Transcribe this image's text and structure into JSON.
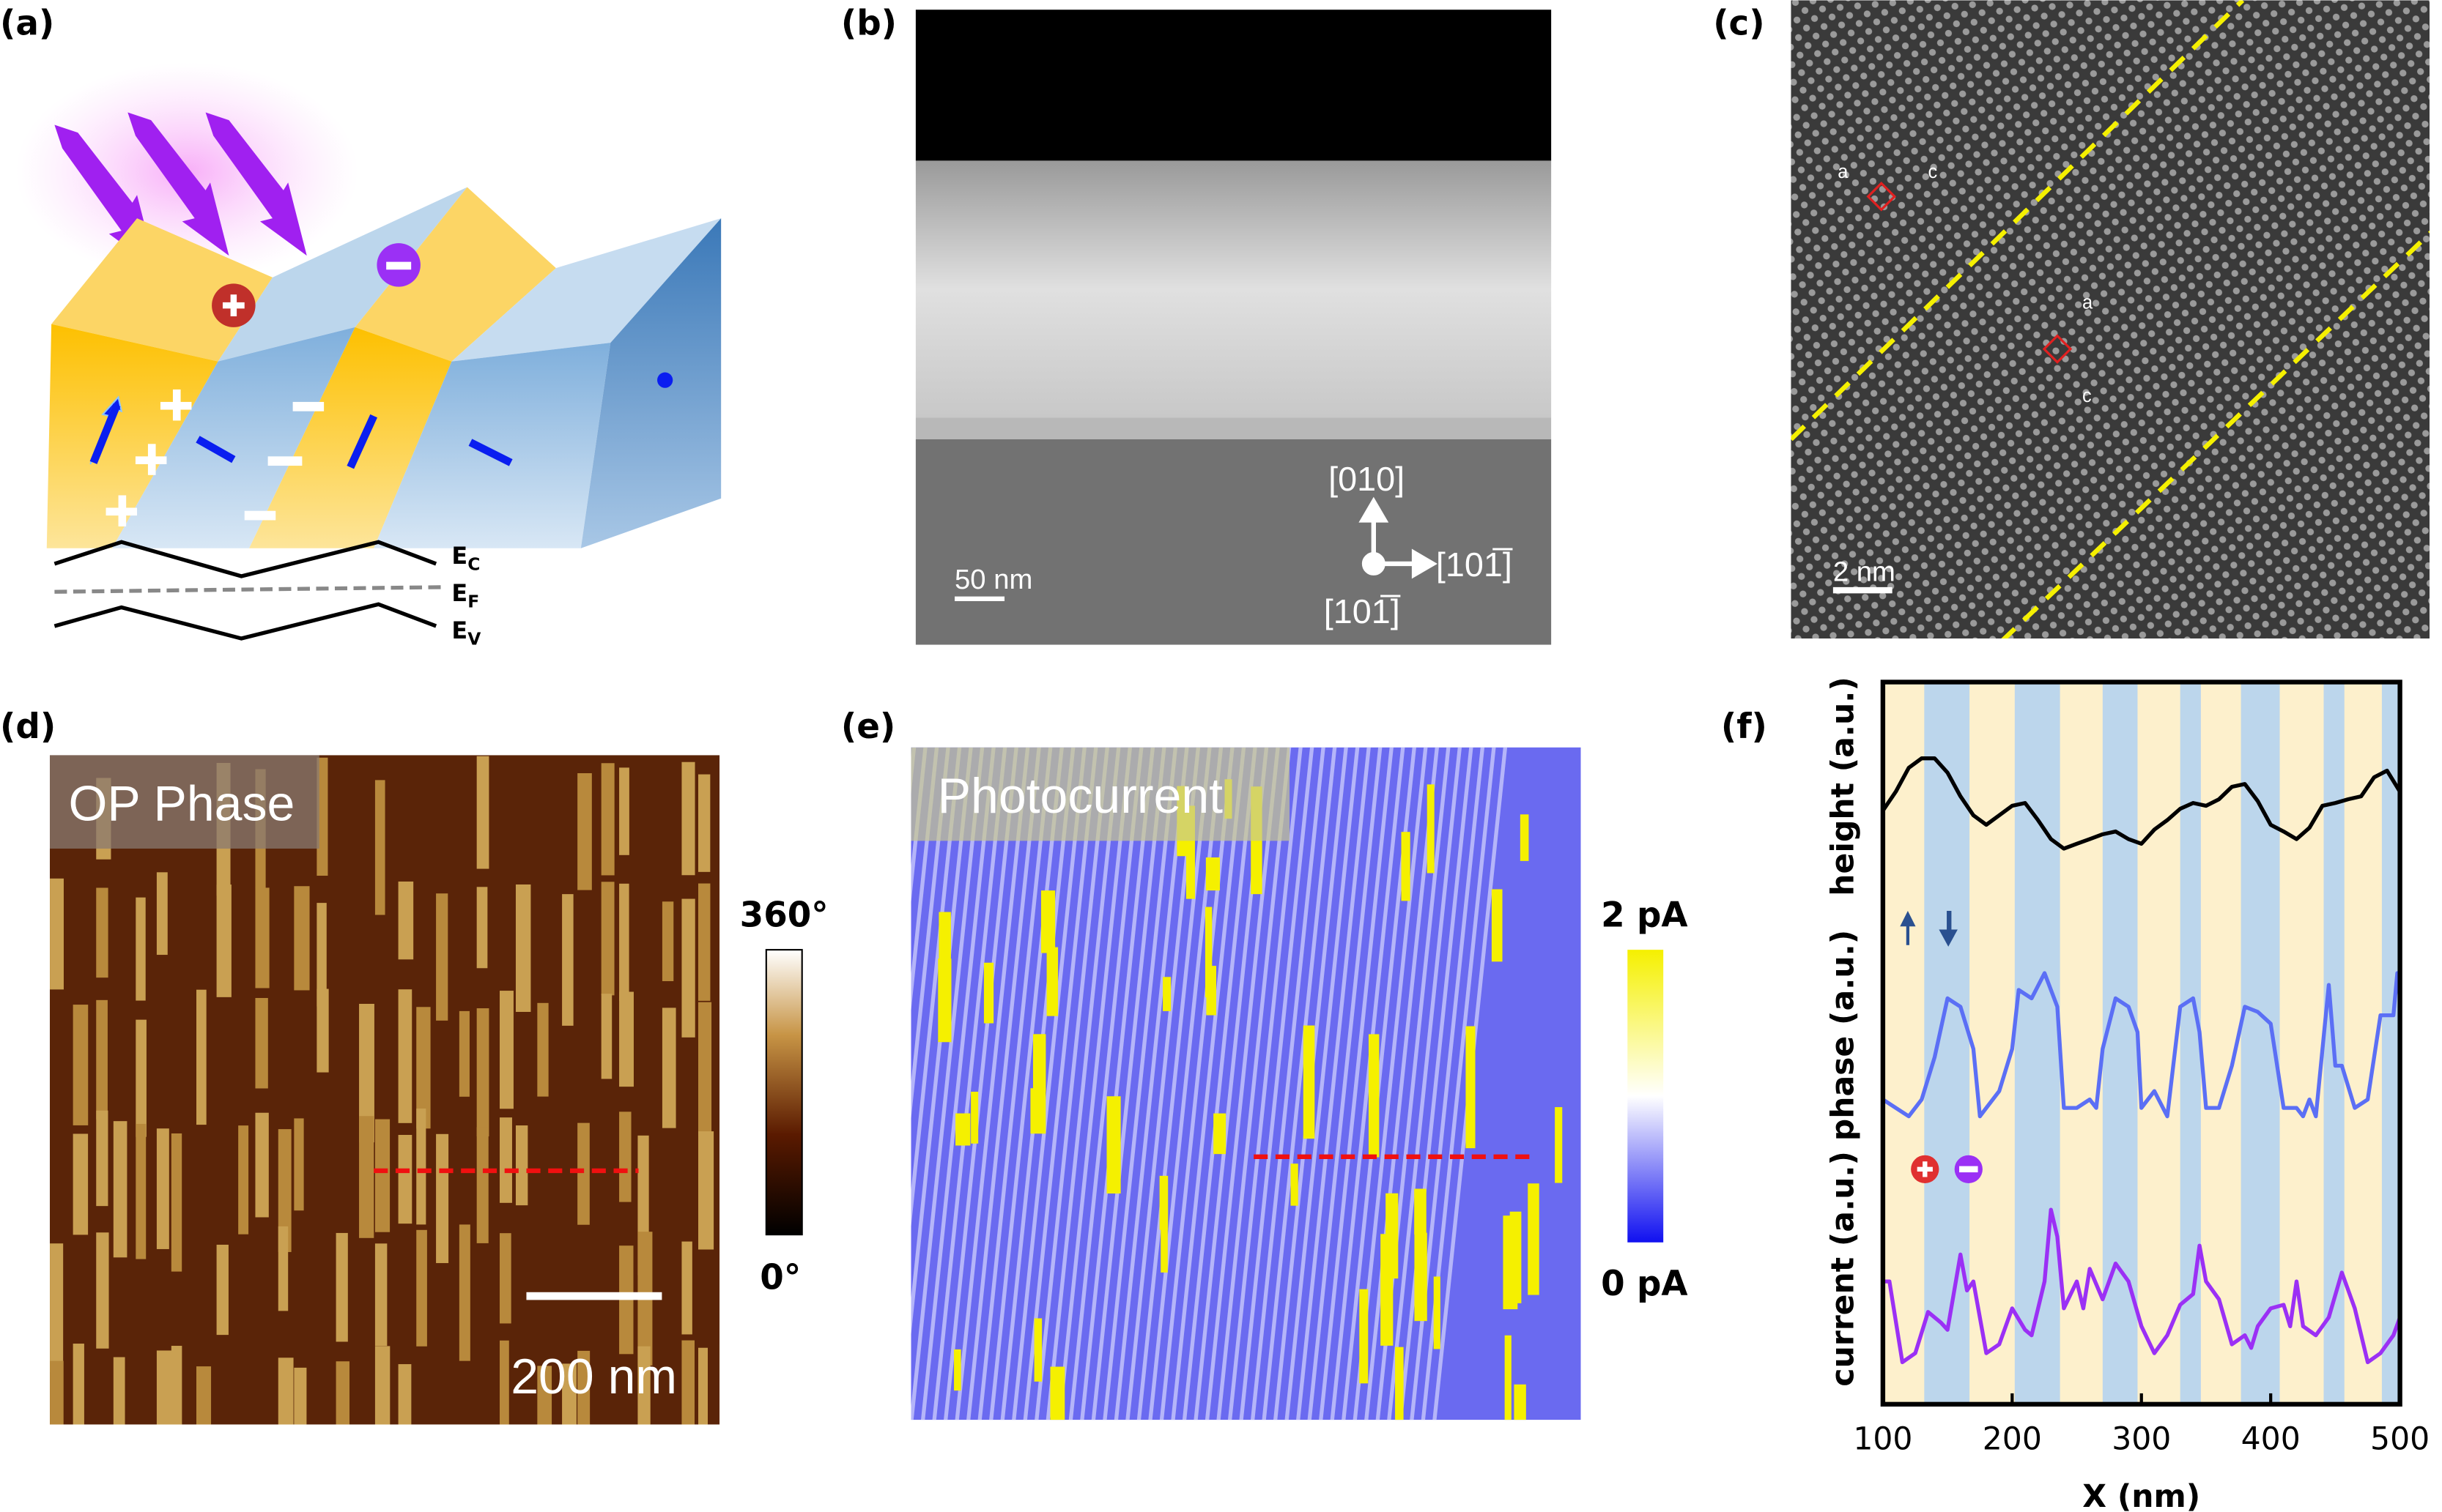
{
  "panels": {
    "a": {
      "label": "(a)",
      "energy_levels": {
        "ec": "E",
        "ec_sub": "C",
        "ef": "E",
        "ef_sub": "F",
        "ev": "E",
        "ev_sub": "V"
      },
      "colors": {
        "up_domain": "#fcd565",
        "down_domain": "#9fc1e3",
        "light": "#a020f0",
        "arrow": "#0a1ef0"
      }
    },
    "b": {
      "label": "(b)",
      "scale_bar": "50 nm",
      "axes": {
        "up": "[010]",
        "right": "[101̅]",
        "out": "[101̅]"
      }
    },
    "c": {
      "label": "(c)",
      "scale_bar": "2 nm",
      "cell1": {
        "a": "a",
        "c": "c"
      },
      "cell2": {
        "a": "a",
        "c": "c"
      }
    },
    "d": {
      "label": "(d)",
      "title": "OP Phase",
      "scale_bar": "200 nm",
      "colorbar": {
        "max": "360°",
        "min": "0°"
      }
    },
    "e": {
      "label": "(e)",
      "title": "Photocurrent",
      "colorbar": {
        "max": "2 pA",
        "min": "0 pA"
      }
    },
    "f": {
      "label": "(f)"
    }
  },
  "chart_data": {
    "type": "line",
    "xlabel": "X (nm)",
    "xlim": [
      100,
      500
    ],
    "xticks": [
      "100",
      "200",
      "300",
      "400",
      "500"
    ],
    "ylabels": [
      "height (a.u.)",
      "phase (a.u.)",
      "current (a.u.)"
    ],
    "domain_colors": {
      "up": "#fdf0cc",
      "down": "#bcd6ec"
    },
    "down_domain_bands_nm": [
      [
        132,
        167
      ],
      [
        202,
        237
      ],
      [
        270,
        297
      ],
      [
        330,
        346
      ],
      [
        377,
        407
      ],
      [
        441,
        457
      ],
      [
        486,
        500
      ]
    ],
    "series": [
      {
        "key": "height",
        "color": "#000000",
        "x": [
          100,
          110,
          120,
          130,
          140,
          150,
          160,
          170,
          180,
          190,
          200,
          210,
          220,
          230,
          240,
          250,
          260,
          270,
          280,
          290,
          300,
          310,
          320,
          330,
          340,
          350,
          360,
          370,
          380,
          390,
          400,
          410,
          420,
          430,
          440,
          450,
          460,
          470,
          480,
          490,
          500
        ],
        "y": [
          0.3,
          0.5,
          0.75,
          0.85,
          0.85,
          0.7,
          0.45,
          0.25,
          0.15,
          0.25,
          0.35,
          0.38,
          0.2,
          0.0,
          -0.1,
          -0.05,
          0.0,
          0.05,
          0.08,
          0.0,
          -0.05,
          0.1,
          0.2,
          0.32,
          0.38,
          0.35,
          0.42,
          0.55,
          0.58,
          0.4,
          0.15,
          0.08,
          0.0,
          0.12,
          0.35,
          0.38,
          0.42,
          0.45,
          0.65,
          0.72,
          0.5
        ]
      },
      {
        "key": "phase",
        "color": "#5b6ff5",
        "x": [
          100,
          110,
          120,
          130,
          140,
          150,
          160,
          170,
          175,
          180,
          190,
          200,
          205,
          215,
          225,
          235,
          240,
          250,
          260,
          265,
          270,
          280,
          290,
          297,
          300,
          310,
          320,
          330,
          340,
          345,
          350,
          360,
          370,
          380,
          390,
          400,
          410,
          420,
          425,
          430,
          435,
          445,
          450,
          455,
          465,
          475,
          485,
          495,
          498,
          500
        ],
        "y": [
          0.1,
          0.05,
          0.0,
          0.1,
          0.35,
          0.7,
          0.65,
          0.4,
          0.0,
          0.05,
          0.15,
          0.4,
          0.75,
          0.7,
          0.85,
          0.65,
          0.05,
          0.05,
          0.1,
          0.05,
          0.4,
          0.7,
          0.65,
          0.5,
          0.05,
          0.15,
          0.0,
          0.65,
          0.7,
          0.5,
          0.05,
          0.05,
          0.3,
          0.65,
          0.62,
          0.55,
          0.05,
          0.05,
          0.0,
          0.1,
          0.0,
          0.78,
          0.3,
          0.3,
          0.05,
          0.1,
          0.6,
          0.6,
          0.85,
          0.7
        ]
      },
      {
        "key": "current",
        "color": "#9b30f5",
        "x": [
          100,
          105,
          115,
          125,
          135,
          145,
          150,
          160,
          165,
          170,
          180,
          190,
          200,
          210,
          215,
          225,
          230,
          235,
          240,
          250,
          255,
          260,
          270,
          280,
          290,
          300,
          310,
          320,
          330,
          340,
          345,
          350,
          360,
          370,
          380,
          385,
          390,
          400,
          410,
          415,
          420,
          425,
          435,
          445,
          455,
          465,
          475,
          485,
          495,
          500
        ],
        "y": [
          0.45,
          0.45,
          0.0,
          0.05,
          0.28,
          0.22,
          0.18,
          0.6,
          0.4,
          0.45,
          0.05,
          0.1,
          0.3,
          0.18,
          0.15,
          0.45,
          0.85,
          0.7,
          0.3,
          0.45,
          0.3,
          0.52,
          0.35,
          0.55,
          0.45,
          0.2,
          0.05,
          0.15,
          0.32,
          0.38,
          0.65,
          0.45,
          0.35,
          0.1,
          0.15,
          0.08,
          0.2,
          0.3,
          0.32,
          0.2,
          0.45,
          0.2,
          0.15,
          0.25,
          0.5,
          0.3,
          0.0,
          0.05,
          0.15,
          0.25
        ]
      }
    ]
  }
}
